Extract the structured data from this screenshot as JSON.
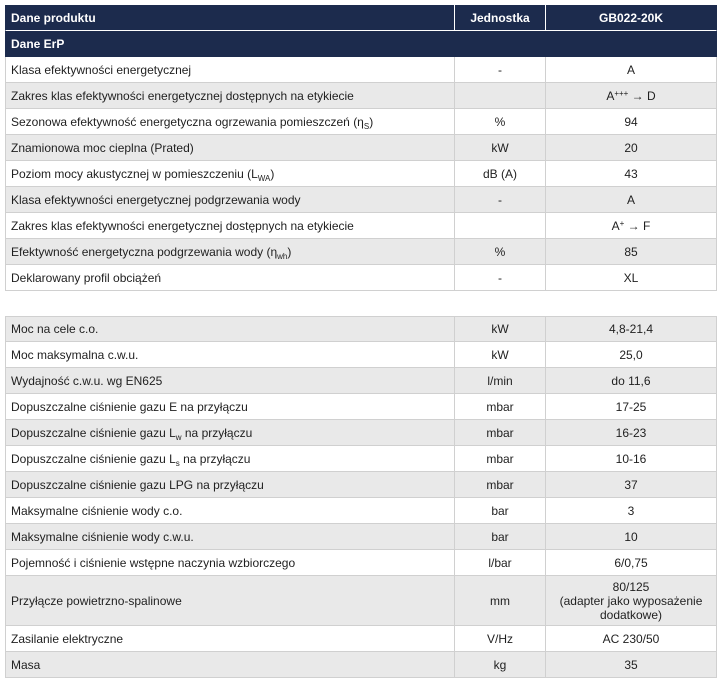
{
  "colors": {
    "header_bg": "#1c2b4d",
    "row_alt_bg": "#e9e9e9",
    "grid_line": "#d0d0d0"
  },
  "header": {
    "product": "Dane produktu",
    "unit": "Jednostka",
    "model": "GB022-20K"
  },
  "erp": {
    "title": "Dane ErP",
    "rows": [
      {
        "label": "Klasa efektywności energetycznej",
        "unit": "-",
        "value": "A"
      },
      {
        "label": "Zakres klas efektywności energetycznej dostępnych na etykiecie",
        "unit": "",
        "value": "A",
        "value_sup": "+++",
        "value_tail": " → D"
      },
      {
        "label": "Sezonowa efektywność energetyczna ogrzewania pomieszczeń (η",
        "label_sub": "S",
        "label_tail": ")",
        "unit": "%",
        "value": "94"
      },
      {
        "label": "Znamionowa moc cieplna (Prated)",
        "unit": "kW",
        "value": "20"
      },
      {
        "label": "Poziom mocy akustycznej w pomieszczeniu (L",
        "label_sub": "WA",
        "label_tail": ")",
        "unit": "dB (A)",
        "value": "43"
      },
      {
        "label": "Klasa efektywności energetycznej podgrzewania wody",
        "unit": "-",
        "value": "A"
      },
      {
        "label": "Zakres klas efektywności energetycznej dostępnych na etykiecie",
        "unit": "",
        "value": "A",
        "value_sup": "+",
        "value_tail": " → F"
      },
      {
        "label": "Efektywność energetyczna podgrzewania wody (η",
        "label_sub": "wh",
        "label_tail": ")",
        "unit": "%",
        "value": "85"
      },
      {
        "label": "Deklarowany profil obciążeń",
        "unit": "-",
        "value": "XL"
      }
    ]
  },
  "general": {
    "rows": [
      {
        "label": "Moc na cele c.o.",
        "unit": "kW",
        "value": "4,8-21,4"
      },
      {
        "label": "Moc maksymalna c.w.u.",
        "unit": "kW",
        "value": "25,0"
      },
      {
        "label": "Wydajność c.w.u. wg EN625",
        "unit": "l/min",
        "value": "do 11,6"
      },
      {
        "label": "Dopuszczalne ciśnienie gazu E na przyłączu",
        "unit": "mbar",
        "value": "17-25"
      },
      {
        "label": "Dopuszczalne ciśnienie gazu L",
        "label_sub": "w",
        "label_tail": " na przyłączu",
        "unit": "mbar",
        "value": "16-23"
      },
      {
        "label": "Dopuszczalne ciśnienie gazu L",
        "label_sub": "s",
        "label_tail": " na przyłączu",
        "unit": "mbar",
        "value": "10-16"
      },
      {
        "label": "Dopuszczalne ciśnienie gazu LPG na przyłączu",
        "unit": "mbar",
        "value": "37"
      },
      {
        "label": "Maksymalne ciśnienie wody c.o.",
        "unit": "bar",
        "value": "3"
      },
      {
        "label": "Maksymalne ciśnienie wody c.w.u.",
        "unit": "bar",
        "value": "10"
      },
      {
        "label": "Pojemność i ciśnienie wstępne naczynia wzbiorczego",
        "unit": "l/bar",
        "value": "6/0,75"
      },
      {
        "label": "Przyłącze powietrzno-spalinowe",
        "unit": "mm",
        "value": "80/125",
        "value_note": "(adapter jako wyposażenie dodatkowe)"
      },
      {
        "label": "Zasilanie elektryczne",
        "unit": "V/Hz",
        "value": "AC 230/50"
      },
      {
        "label": "Masa",
        "unit": "kg",
        "value": "35"
      }
    ]
  }
}
